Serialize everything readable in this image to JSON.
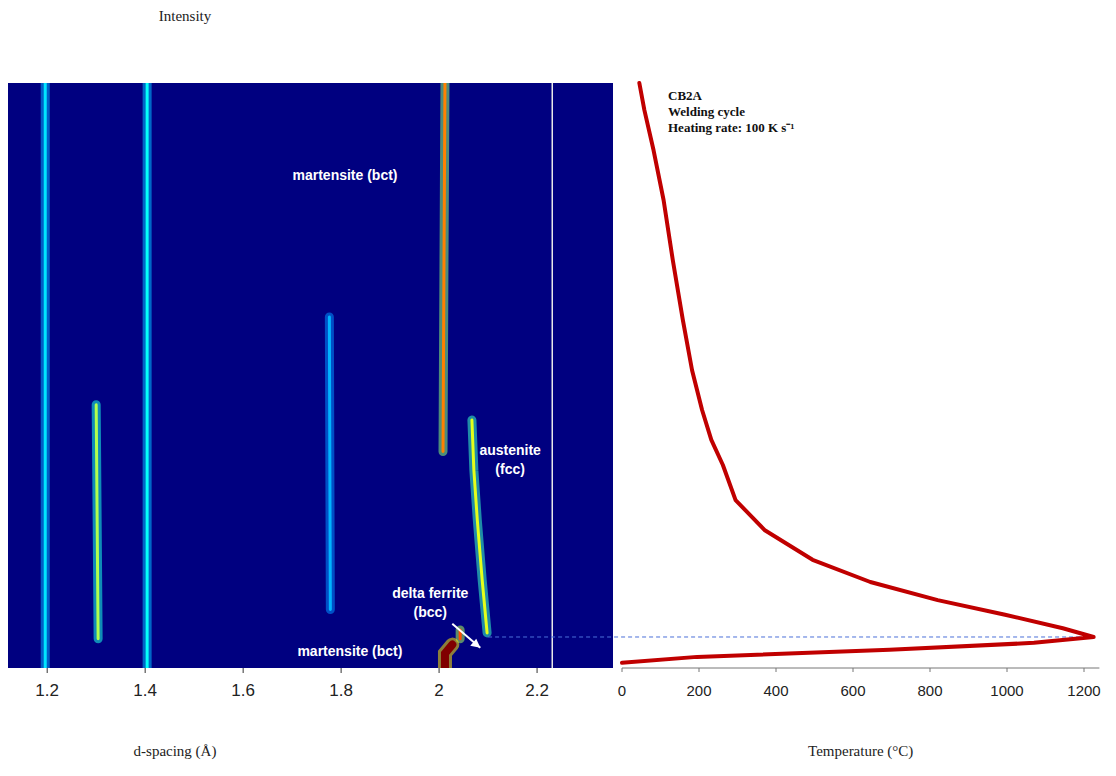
{
  "chart_data": [
    {
      "type": "intensity_map",
      "title": "Intensity",
      "xlabel": "d-spacing (Å)",
      "xlim": [
        1.12,
        2.355
      ],
      "xticks": [
        1.2,
        1.4,
        1.6,
        1.8,
        2,
        2.2
      ],
      "ylim": [
        0,
        100
      ],
      "tick_labels": "x",
      "grid": false,
      "reference_line": 2.231,
      "peaks": [
        {
          "x": [
            1.196,
            1.196
          ],
          "y": [
            0,
            100
          ],
          "intensity": 0.35
        },
        {
          "x": [
            1.304,
            1.302,
            1.3
          ],
          "y": [
            5,
            25,
            45
          ],
          "intensity": 0.55
        },
        {
          "x": [
            1.404,
            1.404
          ],
          "y": [
            0,
            100
          ],
          "intensity": 0.38
        },
        {
          "x": [
            1.778,
            1.776
          ],
          "y": [
            10,
            60
          ],
          "intensity": 0.3
        },
        {
          "x": [
            2.008,
            2.01,
            2.012
          ],
          "y": [
            37,
            70,
            100
          ],
          "intensity": 0.75
        },
        {
          "x": [
            2.098,
            2.088,
            2.078,
            2.071,
            2.067
          ],
          "y": [
            6,
            15,
            25.3,
            33.8,
            42.4
          ],
          "intensity": 0.6
        },
        {
          "x": [
            2.043,
            2.043
          ],
          "y": [
            5,
            6.5
          ],
          "intensity": 0.8
        },
        {
          "x": [
            2.012,
            2.012,
            2.027
          ],
          "y": [
            0,
            2.5,
            4
          ],
          "intensity": 1.0
        }
      ],
      "annotations": [
        {
          "text": [
            "martensite (bct)"
          ],
          "x": 1.808,
          "y": 83.4
        },
        {
          "text": [
            "austenite",
            "(fcc)"
          ],
          "x": 2.145,
          "y": 36.4
        },
        {
          "text": [
            "delta ferrite",
            "(bcc)"
          ],
          "x": 1.982,
          "y": 12.0
        },
        {
          "text": [
            "martensite (bct)"
          ],
          "x": 1.818,
          "y": 2.1
        }
      ]
    },
    {
      "type": "line",
      "xlabel": "Temperature (°C)",
      "annotations": [
        {
          "text": [
            "CB2A",
            "Welding cycle",
            "Heating rate: 100 K s⁻¹"
          ]
        }
      ],
      "xlim": [
        0,
        1240
      ],
      "xticks": [
        0,
        200,
        400,
        600,
        800,
        1000,
        1200
      ],
      "ylim": [
        0,
        100
      ],
      "tick_labels": "x",
      "color": "#c00000",
      "x": [
        0,
        195,
        695,
        1070,
        1225,
        1145,
        995,
        820,
        645,
        495,
        370,
        295,
        262,
        232,
        208,
        182,
        158,
        132,
        108,
        82,
        58,
        45
      ],
      "values": [
        0.9,
        1.9,
        3.1,
        4.3,
        5.3,
        6.8,
        9.1,
        11.6,
        14.7,
        18.5,
        23.6,
        28.7,
        34.7,
        39.0,
        44.1,
        50.9,
        59.5,
        69.7,
        80.0,
        88.5,
        95.4,
        100
      ]
    }
  ]
}
